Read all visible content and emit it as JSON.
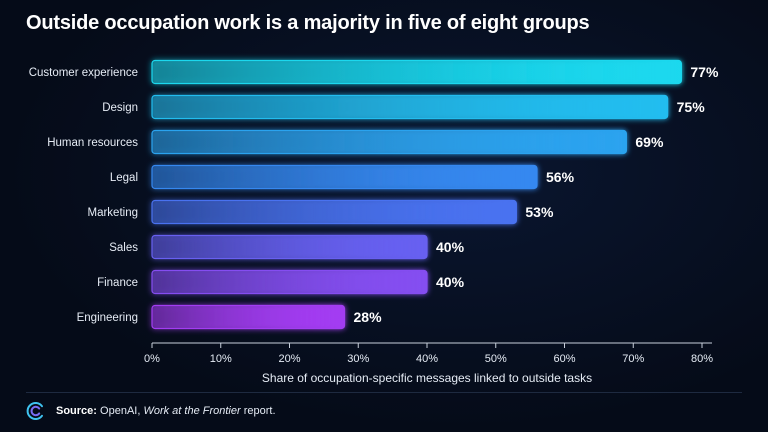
{
  "title": "Outside occupation work is a majority in five of eight groups",
  "chart_data": {
    "type": "bar",
    "orientation": "horizontal",
    "title": "Outside occupation work is a majority in five of eight groups",
    "xlabel": "Share of occupation-specific messages linked to outside tasks",
    "ylabel": "",
    "categories": [
      "Customer experience",
      "Design",
      "Human resources",
      "Legal",
      "Marketing",
      "Sales",
      "Finance",
      "Engineering"
    ],
    "values": [
      77,
      75,
      69,
      56,
      53,
      40,
      40,
      28
    ],
    "value_labels": [
      "77%",
      "75%",
      "69%",
      "56%",
      "53%",
      "40%",
      "40%",
      "28%"
    ],
    "xlim": [
      0,
      80
    ],
    "ticks": [
      0,
      10,
      20,
      30,
      40,
      50,
      60,
      70,
      80
    ],
    "tick_labels": [
      "0%",
      "10%",
      "20%",
      "30%",
      "40%",
      "50%",
      "60%",
      "70%",
      "80%"
    ],
    "grid": false,
    "legend": "none",
    "colors": {
      "top": "#1ad8ee",
      "middle": "#3a7bf0",
      "bottom": "#a33cf2"
    }
  },
  "footer": {
    "source_label": "Source:",
    "source_text": "OpenAI, ",
    "source_italic": "Work at the Frontier",
    "source_end": " report.",
    "logo_icon": "openai-c-logo-icon"
  }
}
